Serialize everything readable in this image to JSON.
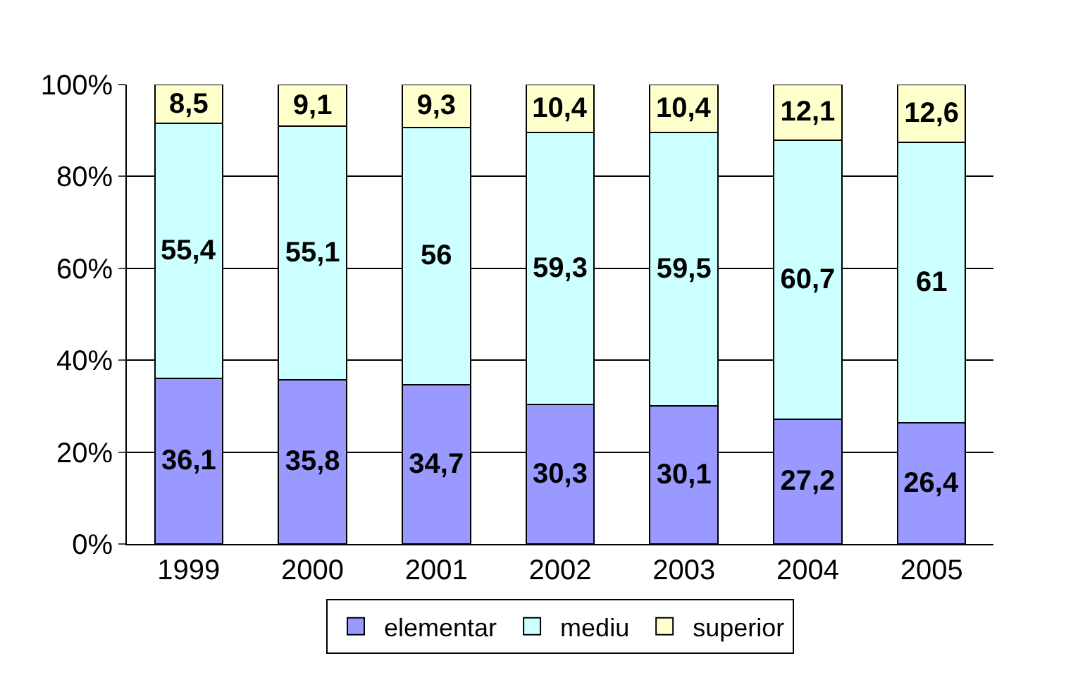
{
  "chart_data": {
    "type": "bar",
    "stacked": true,
    "categories": [
      "1999",
      "2000",
      "2001",
      "2002",
      "2003",
      "2004",
      "2005"
    ],
    "series": [
      {
        "name": "elementar",
        "color": "#9999ff",
        "values": [
          36.1,
          35.8,
          34.7,
          30.3,
          30.1,
          27.2,
          26.4
        ],
        "value_labels": [
          "36,1",
          "35,8",
          "34,7",
          "30,3",
          "30,1",
          "27,2",
          "26,4"
        ]
      },
      {
        "name": "mediu",
        "color": "#ccffff",
        "values": [
          55.4,
          55.1,
          56,
          59.3,
          59.5,
          60.7,
          61
        ],
        "value_labels": [
          "55,4",
          "55,1",
          "56",
          "59,3",
          "59,5",
          "60,7",
          "61"
        ]
      },
      {
        "name": "superior",
        "color": "#ffffcc",
        "values": [
          8.5,
          9.1,
          9.3,
          10.4,
          10.4,
          12.1,
          12.6
        ],
        "value_labels": [
          "8,5",
          "9,1",
          "9,3",
          "10,4",
          "10,4",
          "12,1",
          "12,6"
        ]
      }
    ],
    "ylim": [
      0,
      100
    ],
    "yticks": [
      {
        "value": 0,
        "label": "0%"
      },
      {
        "value": 20,
        "label": "20%"
      },
      {
        "value": 40,
        "label": "40%"
      },
      {
        "value": 60,
        "label": "60%"
      },
      {
        "value": 80,
        "label": "80%"
      },
      {
        "value": 100,
        "label": "100%"
      }
    ],
    "grid": "y",
    "legend": "bottom"
  }
}
